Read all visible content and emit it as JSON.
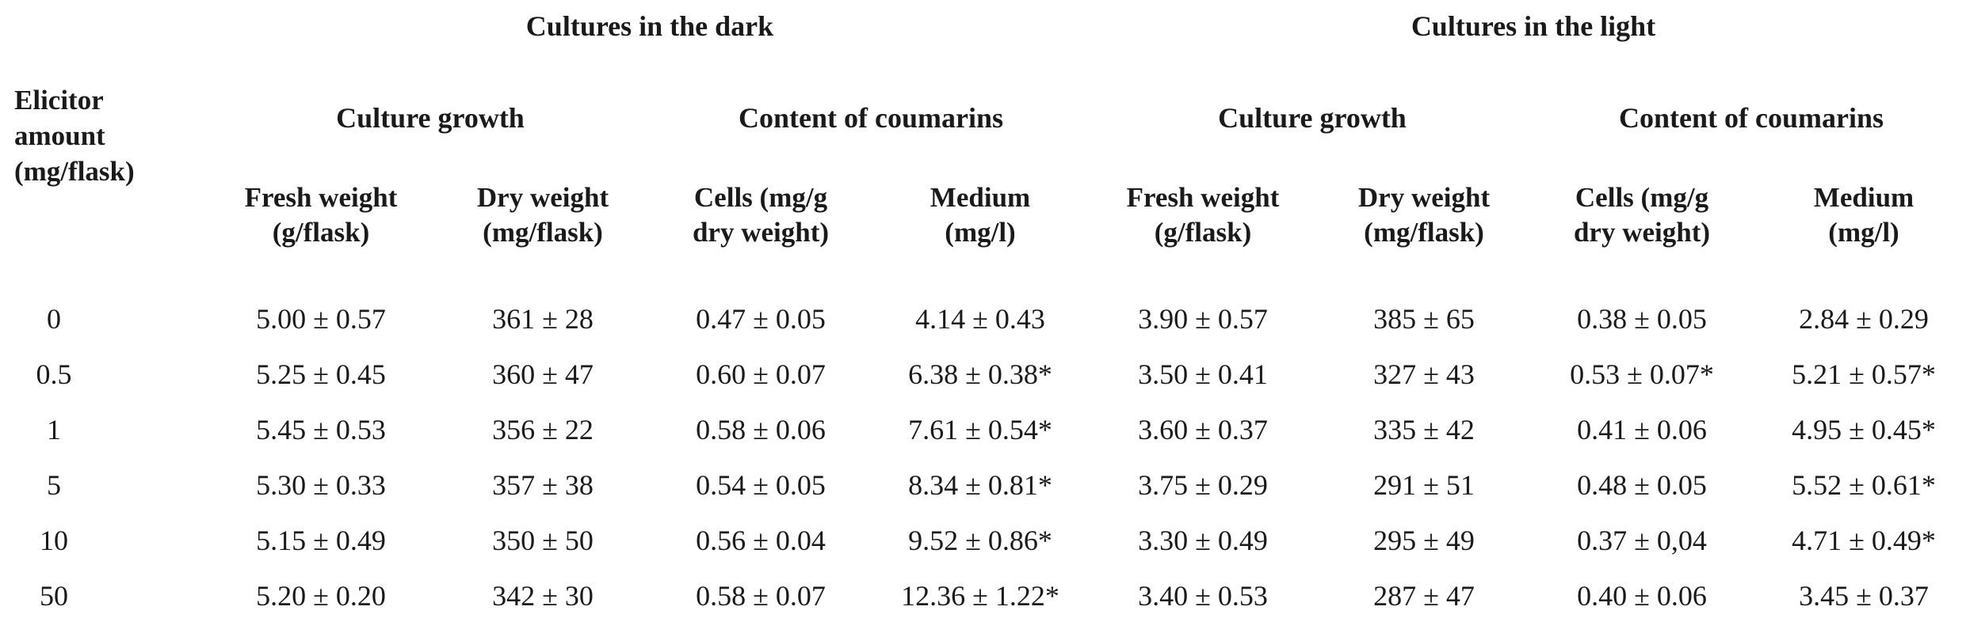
{
  "table": {
    "groups": [
      {
        "label": "Cultures in the dark"
      },
      {
        "label": "Cultures in the light"
      }
    ],
    "subgroups": [
      {
        "label": "Culture growth"
      },
      {
        "label": "Content of coumarins"
      },
      {
        "label": "Culture growth"
      },
      {
        "label": "Content of coumarins"
      }
    ],
    "elicitor_header": {
      "line1": "Elicitor",
      "line2": "amount",
      "line3": "(mg/flask)"
    },
    "columns": [
      {
        "line1": "Fresh weight",
        "line2": "(g/flask)"
      },
      {
        "line1": "Dry weight",
        "line2": "(mg/flask)"
      },
      {
        "line1": "Cells (mg/g",
        "line2": "dry weight)"
      },
      {
        "line1": "Medium",
        "line2": "(mg/l)"
      },
      {
        "line1": "Fresh weight",
        "line2": "(g/flask)"
      },
      {
        "line1": "Dry weight",
        "line2": "(mg/flask)"
      },
      {
        "line1": "Cells (mg/g",
        "line2": "dry weight)"
      },
      {
        "line1": "Medium",
        "line2": "(mg/l)"
      }
    ],
    "rows": [
      {
        "amount": "0",
        "values": [
          "5.00 ± 0.57",
          "361 ± 28",
          "0.47 ± 0.05",
          "4.14 ± 0.43",
          "3.90 ± 0.57",
          "385 ± 65",
          "0.38 ± 0.05",
          "2.84 ± 0.29"
        ]
      },
      {
        "amount": "0.5",
        "values": [
          "5.25 ± 0.45",
          "360 ± 47",
          "0.60 ± 0.07",
          "6.38 ± 0.38*",
          "3.50 ± 0.41",
          "327 ± 43",
          "0.53 ± 0.07*",
          "5.21 ± 0.57*"
        ]
      },
      {
        "amount": "1",
        "values": [
          "5.45 ± 0.53",
          "356 ± 22",
          "0.58 ± 0.06",
          "7.61 ± 0.54*",
          "3.60 ± 0.37",
          "335 ± 42",
          "0.41 ± 0.06",
          "4.95 ± 0.45*"
        ]
      },
      {
        "amount": "5",
        "values": [
          "5.30 ± 0.33",
          "357 ± 38",
          "0.54 ± 0.05",
          "8.34 ± 0.81*",
          "3.75 ± 0.29",
          "291 ± 51",
          "0.48 ± 0.05",
          "5.52 ± 0.61*"
        ]
      },
      {
        "amount": "10",
        "values": [
          "5.15 ± 0.49",
          "350 ± 50",
          "0.56 ± 0.04",
          "9.52 ± 0.86*",
          "3.30 ± 0.49",
          "295 ± 49",
          "0.37 ± 0,04",
          "4.71 ± 0.49*"
        ]
      },
      {
        "amount": "50",
        "values": [
          "5.20 ± 0.20",
          "342 ± 30",
          "0.58 ± 0.07",
          "12.36 ± 1.22*",
          "3.40 ± 0.53",
          "287 ± 47",
          "0.40 ± 0.06",
          "3.45 ± 0.37"
        ]
      }
    ]
  }
}
